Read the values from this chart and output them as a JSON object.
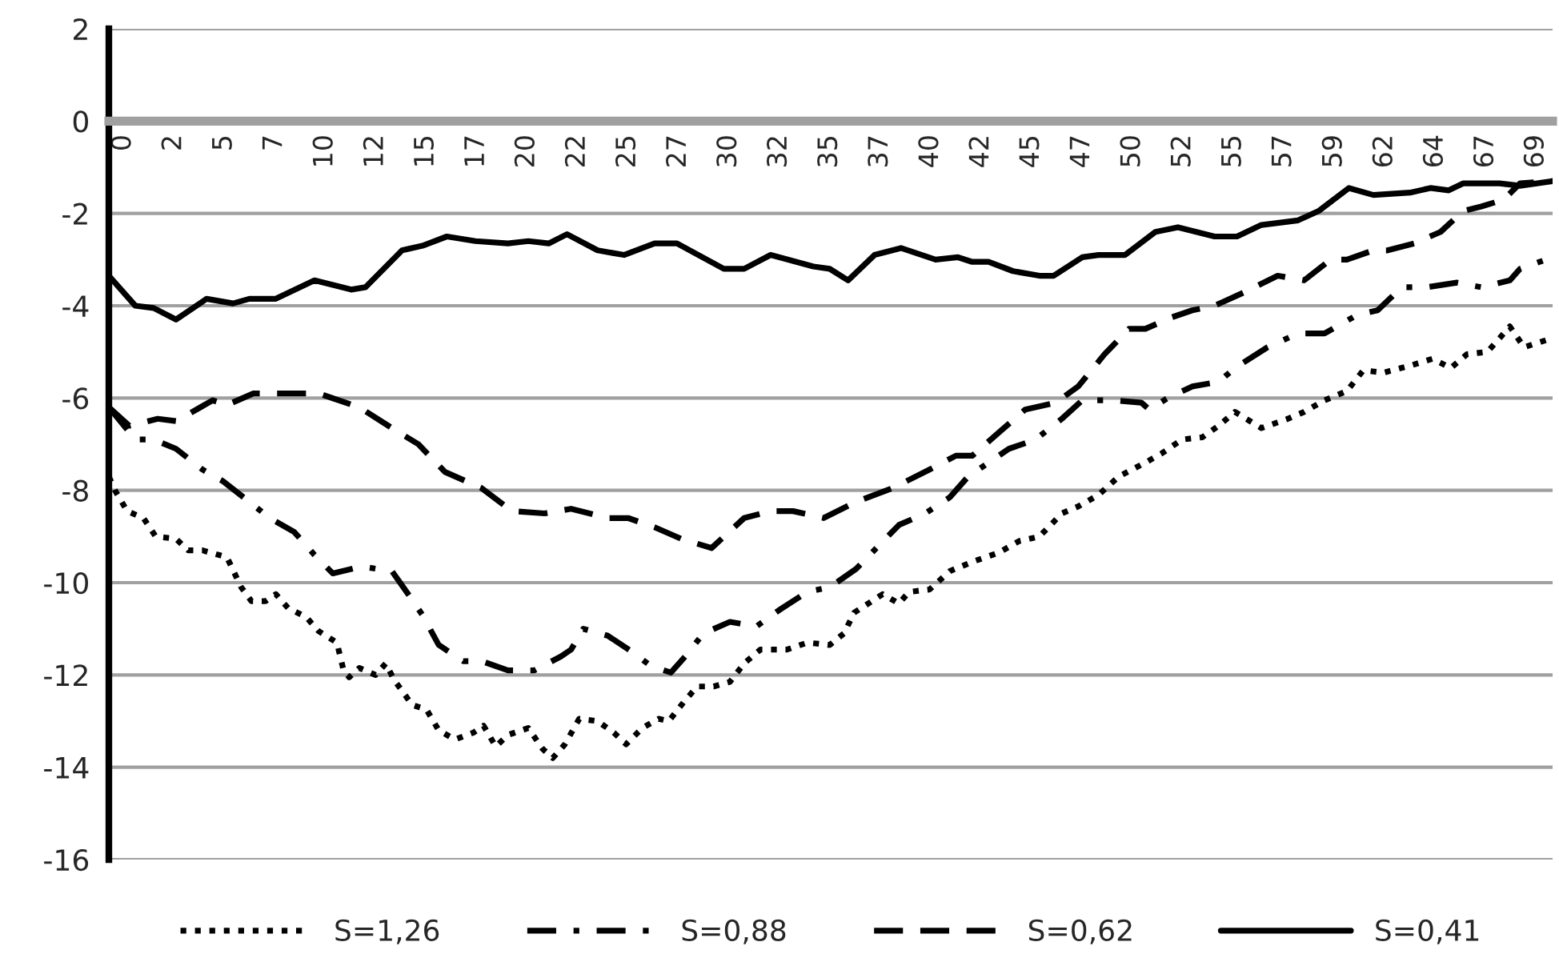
{
  "chart_data": {
    "type": "line",
    "xlim": [
      0,
      70.9
    ],
    "ylim": [
      -16,
      2
    ],
    "xticks": [
      {
        "value": 0,
        "label": "0"
      },
      {
        "value": 2.48,
        "label": "2"
      },
      {
        "value": 4.96,
        "label": "5"
      },
      {
        "value": 7.43,
        "label": "7"
      },
      {
        "value": 9.91,
        "label": "10"
      },
      {
        "value": 12.39,
        "label": "12"
      },
      {
        "value": 14.87,
        "label": "15"
      },
      {
        "value": 17.35,
        "label": "17"
      },
      {
        "value": 19.82,
        "label": "20"
      },
      {
        "value": 22.3,
        "label": "22"
      },
      {
        "value": 24.78,
        "label": "25"
      },
      {
        "value": 27.26,
        "label": "27"
      },
      {
        "value": 29.74,
        "label": "30"
      },
      {
        "value": 32.21,
        "label": "32"
      },
      {
        "value": 34.69,
        "label": "35"
      },
      {
        "value": 37.17,
        "label": "37"
      },
      {
        "value": 39.65,
        "label": "40"
      },
      {
        "value": 42.13,
        "label": "42"
      },
      {
        "value": 44.6,
        "label": "45"
      },
      {
        "value": 47.08,
        "label": "47"
      },
      {
        "value": 49.56,
        "label": "50"
      },
      {
        "value": 52.04,
        "label": "52"
      },
      {
        "value": 54.52,
        "label": "55"
      },
      {
        "value": 56.99,
        "label": "57"
      },
      {
        "value": 59.47,
        "label": "59"
      },
      {
        "value": 61.95,
        "label": "62"
      },
      {
        "value": 64.43,
        "label": "64"
      },
      {
        "value": 66.91,
        "label": "67"
      },
      {
        "value": 69.38,
        "label": "69"
      }
    ],
    "yticks": [
      2,
      0,
      -2,
      -4,
      -6,
      -8,
      -10,
      -12,
      -14,
      -16
    ],
    "grid": "y",
    "legend": "bottom",
    "marker": "none",
    "series": [
      {
        "name": "S=1,26",
        "color": "#000000",
        "line_style": "dotted",
        "x": [
          0,
          0.3,
          0.9,
          1.7,
          2.3,
          3.3,
          3.9,
          4.6,
          5.8,
          6.5,
          7.0,
          7.7,
          8.2,
          8.8,
          9.7,
          10.3,
          11.2,
          11.5,
          11.8,
          12.3,
          13.1,
          13.6,
          14.0,
          14.9,
          15.6,
          16.2,
          17.0,
          17.9,
          18.4,
          19.0,
          19.6,
          20.6,
          21.3,
          21.8,
          22.4,
          23.1,
          24.0,
          24.8,
          25.4,
          26.2,
          27.0,
          27.5,
          28.3,
          28.9,
          29.7,
          30.5,
          31.2,
          32.0,
          33.3,
          34.3,
          35.4,
          36.1,
          36.6,
          38.0,
          38.8,
          39.3,
          40.3,
          41.3,
          42.4,
          43.7,
          44.7,
          45.7,
          46.8,
          47.6,
          48.6,
          49.6,
          50.9,
          51.7,
          52.7,
          53.7,
          54.5,
          55.3,
          56.6,
          57.9,
          58.7,
          59.7,
          60.8,
          61.6,
          62.6,
          63.9,
          65.0,
          65.9,
          66.7,
          67.7,
          68.8,
          69.5,
          70.9
        ],
        "values": [
          -7.7,
          -8.0,
          -8.45,
          -8.6,
          -9.0,
          -9.05,
          -9.3,
          -9.3,
          -9.45,
          -10.1,
          -10.4,
          -10.4,
          -10.25,
          -10.55,
          -10.75,
          -11.05,
          -11.3,
          -11.85,
          -12.05,
          -11.85,
          -12.0,
          -11.75,
          -12.1,
          -12.65,
          -12.75,
          -13.2,
          -13.4,
          -13.25,
          -13.1,
          -13.55,
          -13.3,
          -13.15,
          -13.6,
          -13.8,
          -13.5,
          -12.95,
          -13.0,
          -13.25,
          -13.5,
          -13.15,
          -12.95,
          -13.0,
          -12.55,
          -12.25,
          -12.25,
          -12.15,
          -11.75,
          -11.45,
          -11.45,
          -11.3,
          -11.35,
          -11.1,
          -10.65,
          -10.25,
          -10.45,
          -10.2,
          -10.15,
          -9.75,
          -9.55,
          -9.35,
          -9.1,
          -9.0,
          -8.5,
          -8.35,
          -8.1,
          -7.7,
          -7.4,
          -7.2,
          -6.9,
          -6.85,
          -6.6,
          -6.3,
          -6.65,
          -6.45,
          -6.3,
          -6.05,
          -5.85,
          -5.4,
          -5.45,
          -5.3,
          -5.15,
          -5.35,
          -5.05,
          -5.0,
          -4.45,
          -4.9,
          -4.7
        ]
      },
      {
        "name": "S=0,88",
        "color": "#000000",
        "line_style": "dashdot",
        "x": [
          0,
          1.3,
          2.2,
          3.3,
          4.6,
          5.6,
          6.9,
          7.9,
          9.1,
          10.1,
          11.0,
          12.4,
          13.9,
          14.7,
          15.4,
          16.2,
          17.4,
          18.3,
          19.6,
          20.9,
          22.2,
          22.7,
          23.3,
          24.5,
          25.7,
          26.6,
          27.6,
          28.3,
          29.2,
          30.5,
          31.8,
          32.9,
          34.3,
          35.4,
          36.7,
          38.8,
          40.1,
          41.3,
          42.2,
          44.2,
          45.5,
          46.8,
          47.8,
          49.4,
          50.7,
          51.1,
          52.0,
          53.2,
          54.5,
          55.3,
          56.9,
          58.4,
          59.7,
          61.3,
          62.3,
          63.5,
          64.7,
          66.2,
          67.4,
          68.8,
          69.3,
          70.9
        ],
        "values": [
          -6.2,
          -6.9,
          -6.9,
          -7.1,
          -7.55,
          -7.8,
          -8.25,
          -8.6,
          -8.9,
          -9.4,
          -9.8,
          -9.65,
          -9.75,
          -10.25,
          -10.7,
          -11.35,
          -11.7,
          -11.7,
          -11.9,
          -11.9,
          -11.6,
          -11.45,
          -11.0,
          -11.15,
          -11.5,
          -11.8,
          -11.95,
          -11.6,
          -11.1,
          -10.85,
          -10.95,
          -10.6,
          -10.2,
          -10.1,
          -9.7,
          -8.75,
          -8.5,
          -8.15,
          -7.7,
          -7.1,
          -6.9,
          -6.45,
          -6.05,
          -6.05,
          -6.1,
          -6.25,
          -6.0,
          -5.75,
          -5.65,
          -5.35,
          -4.9,
          -4.6,
          -4.6,
          -4.2,
          -4.1,
          -3.6,
          -3.6,
          -3.5,
          -3.6,
          -3.45,
          -3.2,
          -2.95
        ]
      },
      {
        "name": "S=0,62",
        "color": "#000000",
        "line_style": "dashed",
        "x": [
          0,
          1.0,
          2.4,
          3.3,
          5.1,
          5.8,
          7.1,
          8.7,
          10.3,
          12.3,
          13.9,
          15.2,
          16.5,
          18.3,
          19.8,
          21.4,
          22.7,
          24.5,
          25.5,
          26.8,
          28.1,
          29.6,
          31.2,
          32.5,
          33.6,
          35.1,
          36.7,
          38.5,
          40.3,
          41.6,
          42.4,
          43.7,
          45.0,
          46.5,
          47.6,
          48.9,
          50.1,
          50.9,
          52.2,
          53.2,
          54.3,
          55.8,
          57.4,
          58.7,
          60.0,
          60.8,
          62.1,
          62.8,
          64.1,
          65.4,
          66.5,
          67.4,
          68.5,
          69.3,
          70.9
        ],
        "values": [
          -6.2,
          -6.6,
          -6.45,
          -6.5,
          -6.05,
          -6.15,
          -5.9,
          -5.9,
          -5.9,
          -6.2,
          -6.65,
          -7.0,
          -7.6,
          -7.95,
          -8.45,
          -8.5,
          -8.4,
          -8.6,
          -8.6,
          -8.8,
          -9.05,
          -9.25,
          -8.6,
          -8.45,
          -8.45,
          -8.6,
          -8.25,
          -7.95,
          -7.55,
          -7.25,
          -7.25,
          -6.75,
          -6.25,
          -6.1,
          -5.75,
          -5.05,
          -4.5,
          -4.5,
          -4.25,
          -4.1,
          -4.0,
          -3.7,
          -3.35,
          -3.45,
          -3.0,
          -3.0,
          -2.8,
          -2.8,
          -2.65,
          -2.4,
          -1.95,
          -1.85,
          -1.7,
          -1.35,
          -1.3
        ]
      },
      {
        "name": "S=0,41",
        "color": "#000000",
        "line_style": "solid",
        "x": [
          0,
          1.3,
          2.2,
          3.3,
          4.8,
          6.1,
          6.9,
          8.2,
          10.1,
          11.9,
          12.6,
          14.4,
          15.4,
          16.6,
          18.0,
          19.6,
          20.6,
          21.6,
          22.5,
          24.0,
          25.3,
          26.8,
          27.9,
          30.2,
          31.2,
          32.5,
          34.6,
          35.4,
          36.3,
          37.6,
          38.9,
          40.6,
          41.7,
          42.4,
          43.2,
          44.4,
          45.7,
          46.4,
          47.8,
          48.6,
          49.9,
          51.4,
          52.5,
          54.3,
          55.4,
          56.6,
          58.4,
          59.4,
          60.9,
          62.1,
          63.9,
          64.9,
          65.8,
          66.5,
          68.3,
          69.3,
          70.9
        ],
        "values": [
          -3.35,
          -4.0,
          -4.05,
          -4.3,
          -3.85,
          -3.95,
          -3.85,
          -3.85,
          -3.45,
          -3.65,
          -3.6,
          -2.8,
          -2.7,
          -2.5,
          -2.6,
          -2.65,
          -2.6,
          -2.65,
          -2.45,
          -2.8,
          -2.9,
          -2.65,
          -2.65,
          -3.2,
          -3.2,
          -2.9,
          -3.15,
          -3.2,
          -3.45,
          -2.9,
          -2.75,
          -3.0,
          -2.95,
          -3.05,
          -3.05,
          -3.25,
          -3.35,
          -3.35,
          -2.95,
          -2.9,
          -2.9,
          -2.4,
          -2.3,
          -2.5,
          -2.5,
          -2.25,
          -2.15,
          -1.95,
          -1.45,
          -1.6,
          -1.55,
          -1.45,
          -1.5,
          -1.35,
          -1.35,
          -1.4,
          -1.3
        ]
      }
    ]
  }
}
